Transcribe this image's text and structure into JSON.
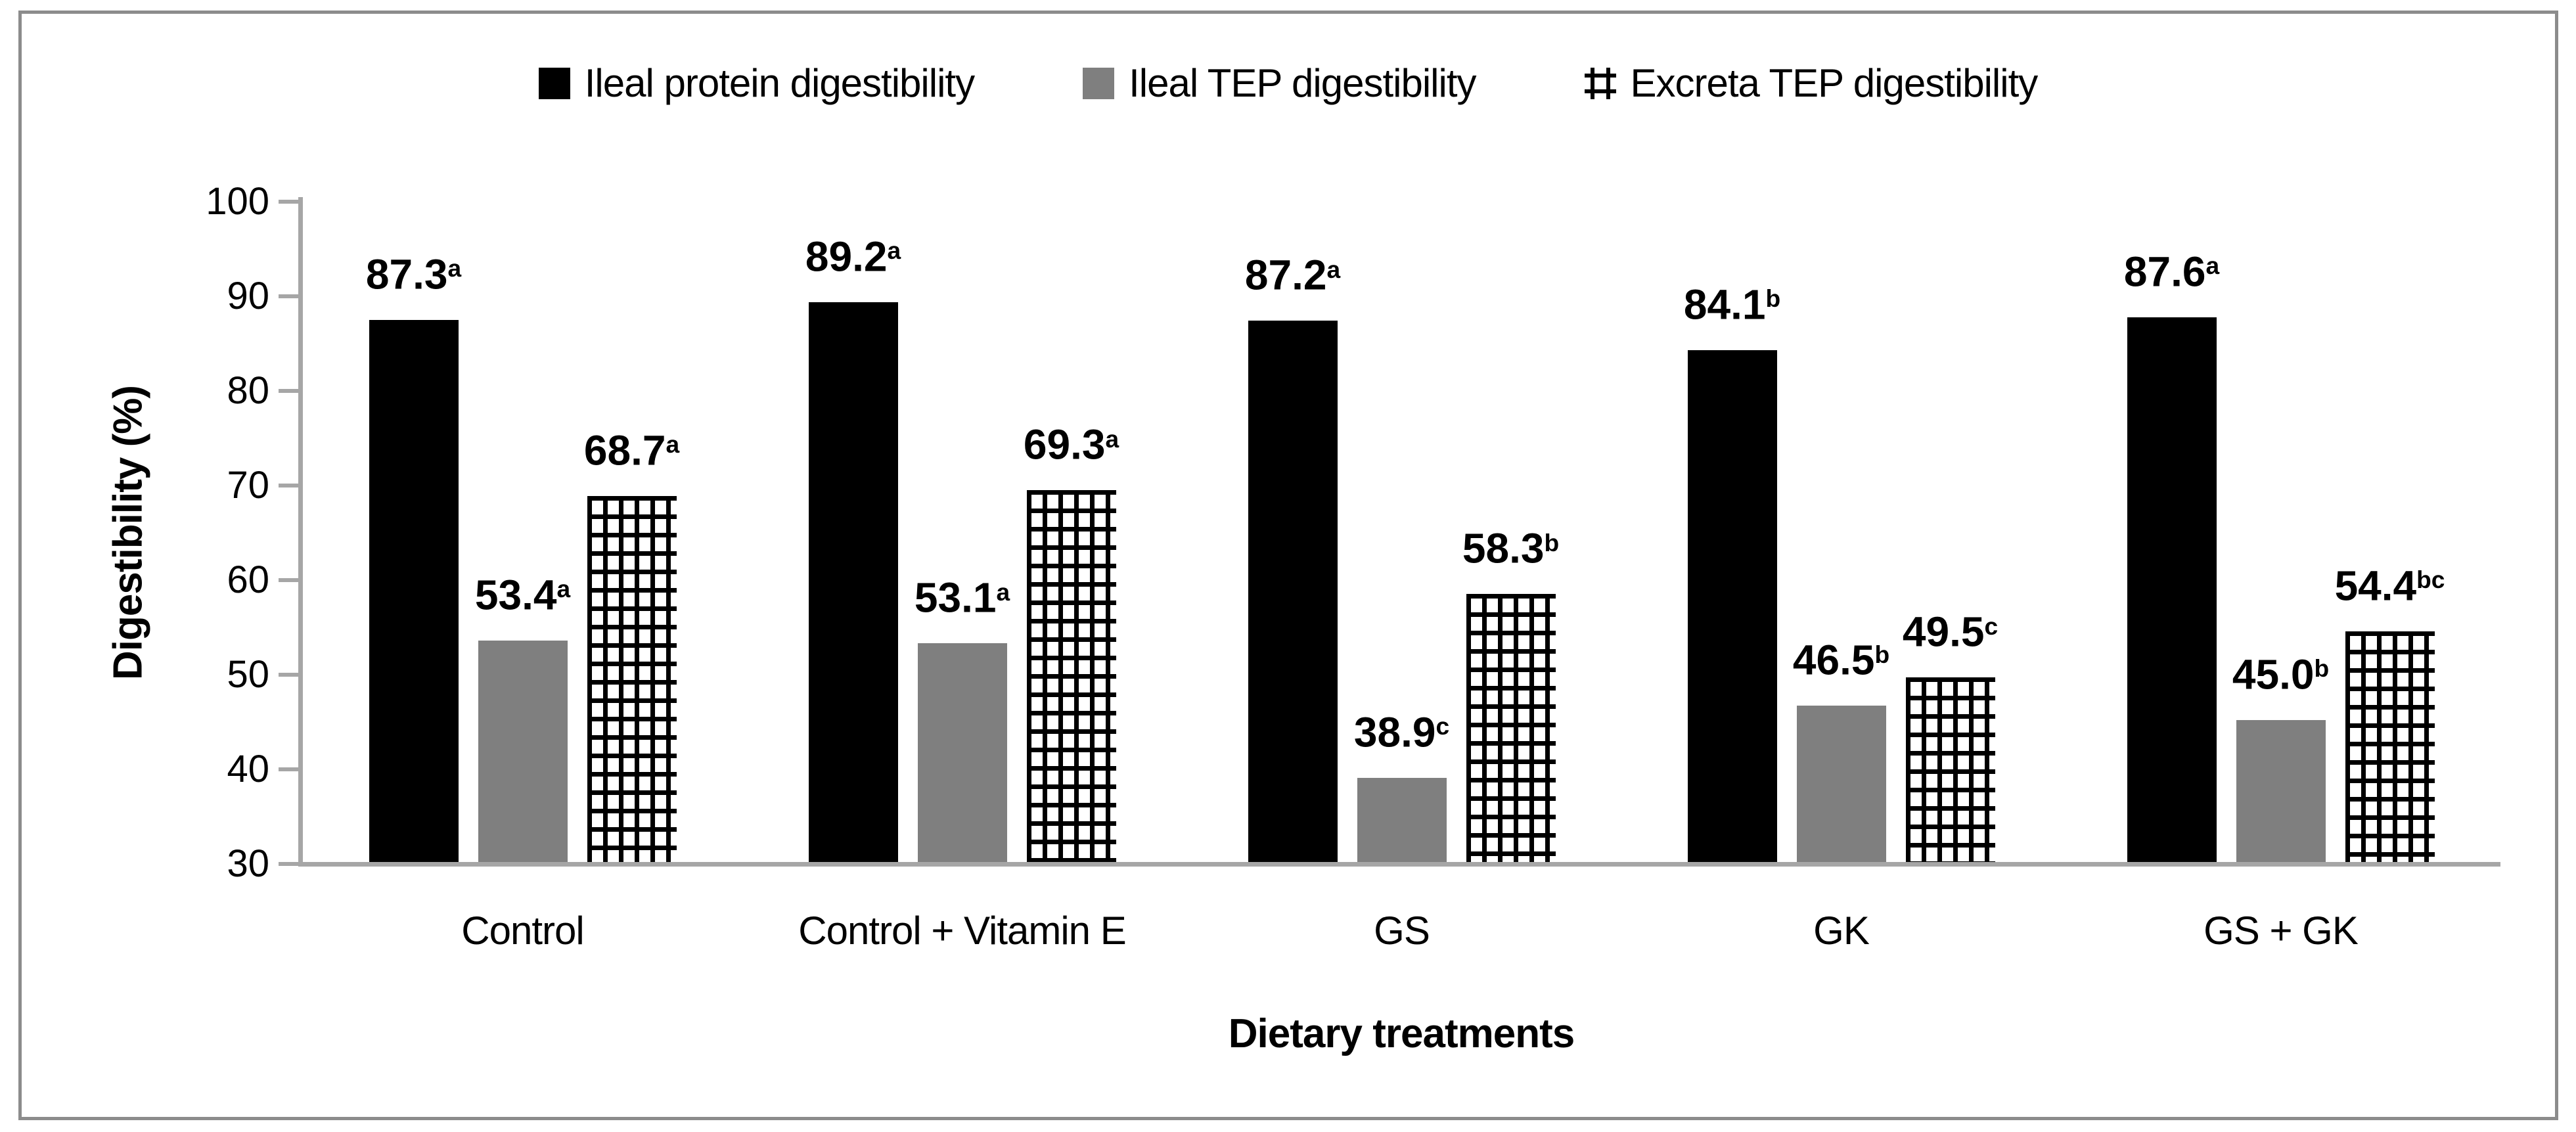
{
  "legend": {
    "items": [
      {
        "label": "Ileal protein digestibility",
        "fill": "black"
      },
      {
        "label": "Ileal TEP digestibility",
        "fill": "gray"
      },
      {
        "label": "Excreta TEP digestibility",
        "fill": "crosshatch"
      }
    ]
  },
  "chart_data": {
    "type": "bar",
    "title": "",
    "categories": [
      "Control",
      "Control + Vitamin E",
      "GS",
      "GK",
      "GS + GK"
    ],
    "series": [
      {
        "name": "Ileal protein digestibility",
        "fill": "black",
        "color": "#000000",
        "values": [
          87.3,
          89.2,
          87.2,
          84.1,
          87.6
        ],
        "superscripts": [
          "a",
          "a",
          "a",
          "b",
          "a"
        ]
      },
      {
        "name": "Ileal TEP digestibility",
        "fill": "gray",
        "color": "#7f7f7f",
        "values": [
          53.4,
          53.1,
          38.9,
          46.5,
          45.0
        ],
        "superscripts": [
          "a",
          "a",
          "c",
          "b",
          "b"
        ]
      },
      {
        "name": "Excreta TEP digestibility",
        "fill": "crosshatch",
        "color": "#000000",
        "values": [
          68.7,
          69.3,
          58.3,
          49.5,
          54.4
        ],
        "superscripts": [
          "a",
          "a",
          "b",
          "c",
          "bc"
        ]
      }
    ],
    "ylabel": "Digestibility (%)",
    "xlabel": "Dietary treatments",
    "ylim": [
      30,
      100
    ],
    "yticks": [
      100,
      90,
      80,
      70,
      60,
      50,
      40,
      30
    ],
    "grid": "off",
    "legend_position": "top-center",
    "value_label_format": "one-decimal-with-superscript"
  },
  "colors": {
    "bar_black": "#000000",
    "bar_gray": "#7f7f7f",
    "axis_line": "#a6a6a6",
    "figure_border": "#8c8c8c",
    "text": "#000000",
    "background": "#ffffff"
  }
}
